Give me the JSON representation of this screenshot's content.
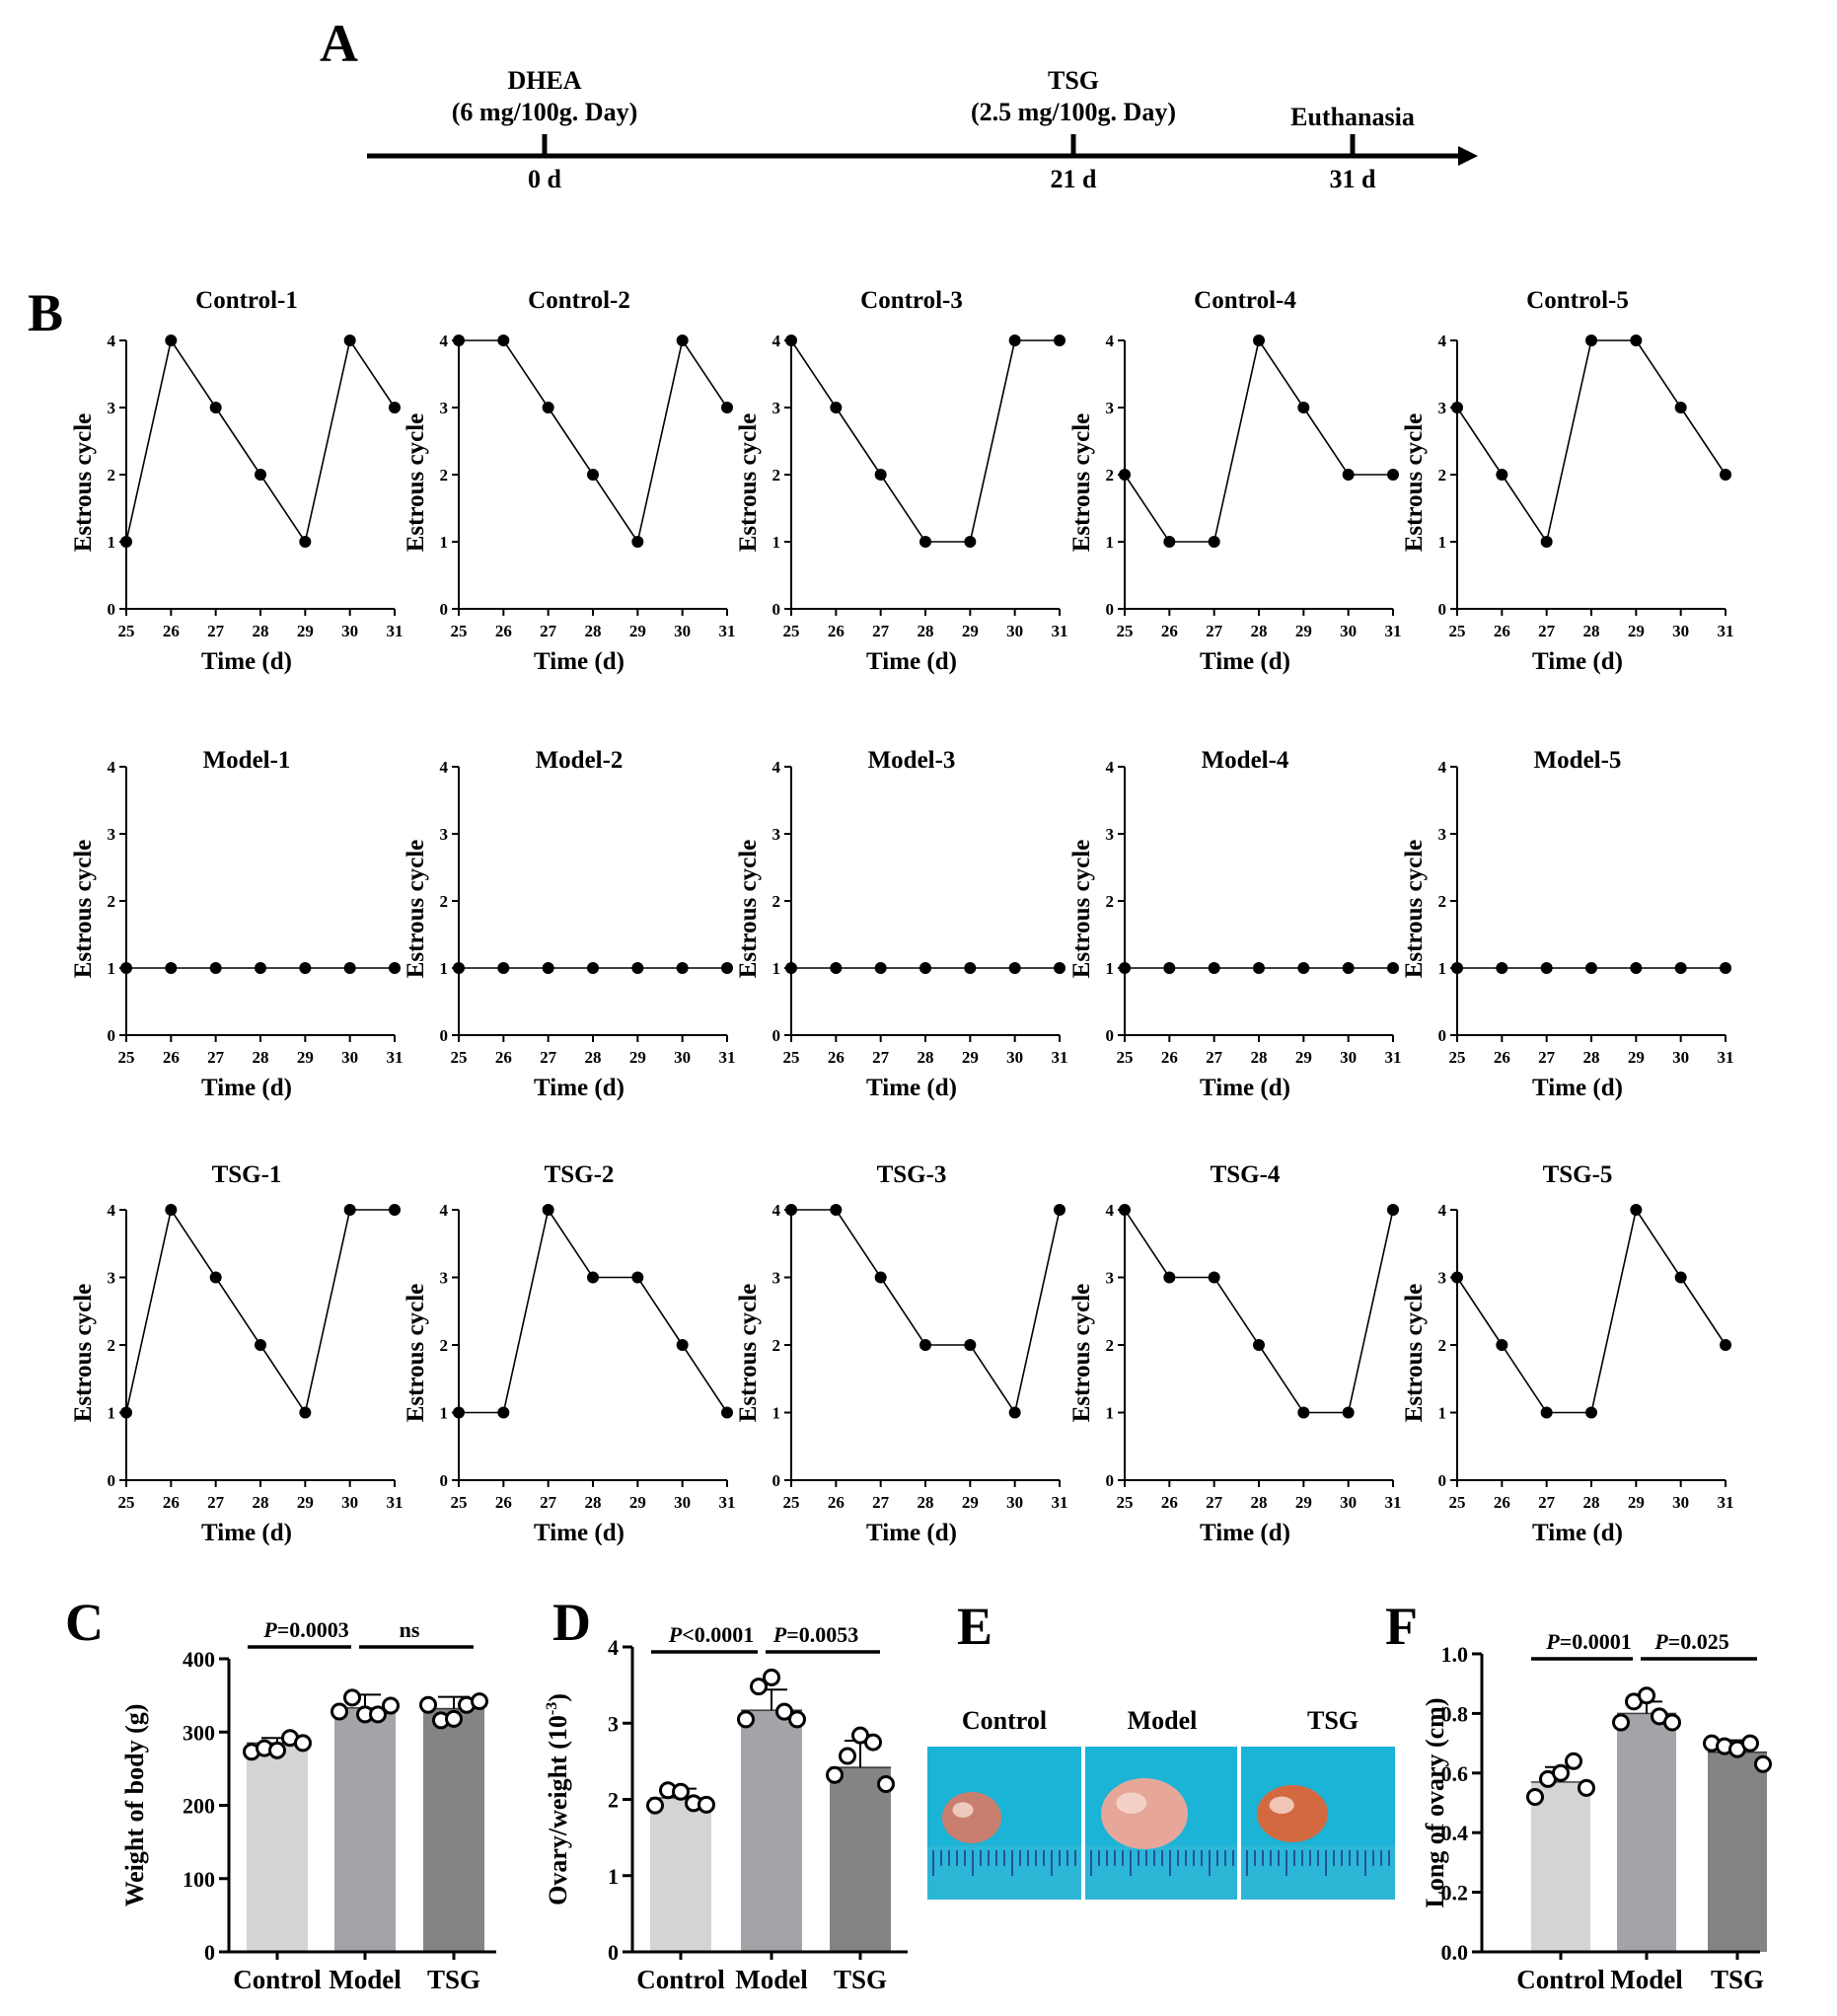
{
  "panels": {
    "A": "A",
    "B": "B",
    "C": "C",
    "D": "D",
    "E": "E",
    "F": "F"
  },
  "timeline": {
    "events": [
      {
        "label": "DHEA",
        "dose": "(6 mg/100g. Day)",
        "day_label": "0 d",
        "day": 0
      },
      {
        "label": "TSG",
        "dose": "(2.5 mg/100g. Day)",
        "day_label": "21 d",
        "day": 21
      },
      {
        "label": "Euthanasia",
        "dose": "",
        "day_label": "31 d",
        "day": 31
      }
    ]
  },
  "estrous": {
    "ylabel": "Estrous cycle",
    "xlabel": "Time (d)",
    "x": [
      25,
      26,
      27,
      28,
      29,
      30,
      31
    ],
    "yticks": [
      0,
      1,
      2,
      3,
      4
    ]
  },
  "ovary_photo": {
    "labels": [
      "Control",
      "Model",
      "TSG"
    ],
    "background": "#1bb3d6"
  },
  "colors": {
    "control_bar": "#d4d4d4",
    "model_bar": "#a3a3a8",
    "tsg_bar": "#848484",
    "line": "#000000"
  },
  "chart_data": [
    {
      "type": "line",
      "title": "Control-1",
      "xlabel": "Time (d)",
      "ylabel": "Estrous cycle",
      "x": [
        25,
        26,
        27,
        28,
        29,
        30,
        31
      ],
      "values": [
        1,
        4,
        3,
        2,
        1,
        4,
        3
      ],
      "ylim": [
        0,
        4
      ]
    },
    {
      "type": "line",
      "title": "Control-2",
      "xlabel": "Time (d)",
      "ylabel": "Estrous cycle",
      "x": [
        25,
        26,
        27,
        28,
        29,
        30,
        31
      ],
      "values": [
        4,
        4,
        3,
        2,
        1,
        4,
        3
      ],
      "ylim": [
        0,
        4
      ]
    },
    {
      "type": "line",
      "title": "Control-3",
      "xlabel": "Time (d)",
      "ylabel": "Estrous cycle",
      "x": [
        25,
        26,
        27,
        28,
        29,
        30,
        31
      ],
      "values": [
        4,
        3,
        2,
        1,
        1,
        4,
        4
      ],
      "ylim": [
        0,
        4
      ]
    },
    {
      "type": "line",
      "title": "Control-4",
      "xlabel": "Time (d)",
      "ylabel": "Estrous cycle",
      "x": [
        25,
        26,
        27,
        28,
        29,
        30,
        31
      ],
      "values": [
        2,
        1,
        1,
        4,
        3,
        2,
        2
      ],
      "ylim": [
        0,
        4
      ]
    },
    {
      "type": "line",
      "title": "Control-5",
      "xlabel": "Time (d)",
      "ylabel": "Estrous cycle",
      "x": [
        25,
        26,
        27,
        28,
        29,
        30,
        31
      ],
      "values": [
        3,
        2,
        1,
        4,
        4,
        3,
        2
      ],
      "ylim": [
        0,
        4
      ]
    },
    {
      "type": "line",
      "title": "Model-1",
      "xlabel": "Time (d)",
      "ylabel": "Estrous cycle",
      "x": [
        25,
        26,
        27,
        28,
        29,
        30,
        31
      ],
      "values": [
        1,
        1,
        1,
        1,
        1,
        1,
        1
      ],
      "ylim": [
        0,
        4
      ]
    },
    {
      "type": "line",
      "title": "Model-2",
      "xlabel": "Time (d)",
      "ylabel": "Estrous cycle",
      "x": [
        25,
        26,
        27,
        28,
        29,
        30,
        31
      ],
      "values": [
        1,
        1,
        1,
        1,
        1,
        1,
        1
      ],
      "ylim": [
        0,
        4
      ]
    },
    {
      "type": "line",
      "title": "Model-3",
      "xlabel": "Time (d)",
      "ylabel": "Estrous cycle",
      "x": [
        25,
        26,
        27,
        28,
        29,
        30,
        31
      ],
      "values": [
        1,
        1,
        1,
        1,
        1,
        1,
        1
      ],
      "ylim": [
        0,
        4
      ]
    },
    {
      "type": "line",
      "title": "Model-4",
      "xlabel": "Time (d)",
      "ylabel": "Estrous cycle",
      "x": [
        25,
        26,
        27,
        28,
        29,
        30,
        31
      ],
      "values": [
        1,
        1,
        1,
        1,
        1,
        1,
        1
      ],
      "ylim": [
        0,
        4
      ]
    },
    {
      "type": "line",
      "title": "Model-5",
      "xlabel": "Time (d)",
      "ylabel": "Estrous cycle",
      "x": [
        25,
        26,
        27,
        28,
        29,
        30,
        31
      ],
      "values": [
        1,
        1,
        1,
        1,
        1,
        1,
        1
      ],
      "ylim": [
        0,
        4
      ]
    },
    {
      "type": "line",
      "title": "TSG-1",
      "xlabel": "Time (d)",
      "ylabel": "Estrous cycle",
      "x": [
        25,
        26,
        27,
        28,
        29,
        30,
        31
      ],
      "values": [
        1,
        4,
        3,
        2,
        1,
        4,
        4
      ],
      "ylim": [
        0,
        4
      ]
    },
    {
      "type": "line",
      "title": "TSG-2",
      "xlabel": "Time (d)",
      "ylabel": "Estrous cycle",
      "x": [
        25,
        26,
        27,
        28,
        29,
        30,
        31
      ],
      "values": [
        1,
        1,
        4,
        3,
        3,
        2,
        1
      ],
      "ylim": [
        0,
        4
      ]
    },
    {
      "type": "line",
      "title": "TSG-3",
      "xlabel": "Time (d)",
      "ylabel": "Estrous cycle",
      "x": [
        25,
        26,
        27,
        28,
        29,
        30,
        31
      ],
      "values": [
        4,
        4,
        3,
        2,
        2,
        1,
        4
      ],
      "ylim": [
        0,
        4
      ]
    },
    {
      "type": "line",
      "title": "TSG-4",
      "xlabel": "Time (d)",
      "ylabel": "Estrous cycle",
      "x": [
        25,
        26,
        27,
        28,
        29,
        30,
        31
      ],
      "values": [
        4,
        3,
        3,
        2,
        1,
        1,
        4
      ],
      "ylim": [
        0,
        4
      ]
    },
    {
      "type": "line",
      "title": "TSG-5",
      "xlabel": "Time (d)",
      "ylabel": "Estrous cycle",
      "x": [
        25,
        26,
        27,
        28,
        29,
        30,
        31
      ],
      "values": [
        3,
        2,
        1,
        1,
        4,
        3,
        2
      ],
      "ylim": [
        0,
        4
      ]
    },
    {
      "type": "bar",
      "categories": [
        "Control",
        "Model",
        "TSG"
      ],
      "ylabel": "Weight of body (g)",
      "ylim": [
        0,
        400
      ],
      "yticks": [
        0,
        100,
        200,
        300,
        400
      ],
      "ytick_labels": [
        "0",
        "100",
        "200",
        "300",
        "400"
      ],
      "values": [
        285,
        333,
        332
      ],
      "errors": [
        7,
        18,
        16
      ],
      "points": [
        [
          273,
          278,
          275,
          292,
          285
        ],
        [
          328,
          347,
          324,
          324,
          336
        ],
        [
          337,
          316,
          318,
          337,
          342
        ]
      ],
      "comparisons": [
        {
          "from": 0,
          "to": 1,
          "label_prefix": "P",
          "label_rest": "=0.0003"
        },
        {
          "from": 1,
          "to": 2,
          "label_prefix": "",
          "label_rest": "ns"
        }
      ]
    },
    {
      "type": "bar",
      "categories": [
        "Control",
        "Model",
        "TSG"
      ],
      "ylabel": "Ovary/weight (10",
      "ylabel_sup": "-3",
      "ylabel_end": ")",
      "ylim": [
        0,
        4
      ],
      "yticks": [
        0,
        1,
        2,
        3,
        4
      ],
      "ytick_labels": [
        "0",
        "1",
        "2",
        "3",
        "4"
      ],
      "values": [
        2.02,
        3.17,
        2.42
      ],
      "errors": [
        0.12,
        0.27,
        0.35
      ],
      "points": [
        [
          1.92,
          2.12,
          2.1,
          1.95,
          1.93
        ],
        [
          3.05,
          3.48,
          3.6,
          3.15,
          3.05
        ],
        [
          2.32,
          2.57,
          2.84,
          2.75,
          2.2
        ]
      ],
      "comparisons": [
        {
          "from": 0,
          "to": 1,
          "label_prefix": "P",
          "label_rest": "<0.0001"
        },
        {
          "from": 1,
          "to": 2,
          "label_prefix": "P",
          "label_rest": "=0.0053"
        }
      ]
    },
    {
      "type": "bar",
      "categories": [
        "Control",
        "Model",
        "TSG"
      ],
      "ylabel": "Long of ovary (cm)",
      "ylim": [
        0,
        1.0
      ],
      "yticks": [
        0,
        0.2,
        0.4,
        0.6,
        0.8,
        1.0
      ],
      "ytick_labels": [
        "0.0",
        "0.2",
        "0.4",
        "0.6",
        "0.8",
        "1.0"
      ],
      "values": [
        0.57,
        0.8,
        0.67
      ],
      "errors": [
        0.05,
        0.04,
        0.04
      ],
      "points": [
        [
          0.52,
          0.58,
          0.6,
          0.64,
          0.55
        ],
        [
          0.77,
          0.84,
          0.86,
          0.79,
          0.77
        ],
        [
          0.7,
          0.69,
          0.68,
          0.7,
          0.63
        ]
      ],
      "comparisons": [
        {
          "from": 0,
          "to": 1,
          "label_prefix": "P",
          "label_rest": "=0.0001"
        },
        {
          "from": 1,
          "to": 2,
          "label_prefix": "P",
          "label_rest": "=0.025"
        }
      ]
    }
  ]
}
